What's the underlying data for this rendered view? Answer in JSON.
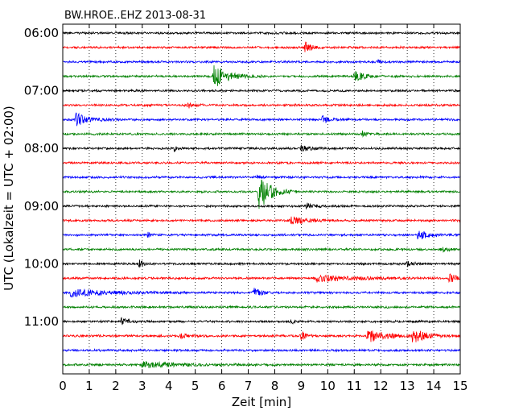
{
  "chart_data": {
    "type": "line",
    "title": "BW.HROE..EHZ 2013-08-31",
    "xlabel": "Zeit  [min]",
    "ylabel": "UTC (Lokalzeit = UTC + 02:00)",
    "xlim": [
      0,
      15
    ],
    "x_ticks": [
      "0",
      "1",
      "2",
      "3",
      "4",
      "5",
      "6",
      "7",
      "8",
      "9",
      "10",
      "11",
      "12",
      "13",
      "14",
      "15"
    ],
    "y_tick_labels": [
      "06:00",
      "07:00",
      "08:00",
      "09:00",
      "10:00",
      "11:00"
    ],
    "grid": {
      "vertical_dotted": true
    },
    "trace_colors": [
      "#000000",
      "#ff0000",
      "#0000ff",
      "#008000"
    ],
    "traces": [
      {
        "start": "06:00",
        "events": []
      },
      {
        "start": "06:15",
        "events": [
          {
            "t_min": 9.15,
            "amp": 0.55,
            "dur_min": 0.6
          }
        ]
      },
      {
        "start": "06:30",
        "events": [
          {
            "t_min": 11.9,
            "amp": 0.22,
            "dur_min": 0.2
          }
        ]
      },
      {
        "start": "06:45",
        "events": [
          {
            "t_min": 5.7,
            "amp": 1.0,
            "dur_min": 1.5
          },
          {
            "t_min": 11.0,
            "amp": 0.55,
            "dur_min": 0.9
          }
        ]
      },
      {
        "start": "07:00",
        "events": []
      },
      {
        "start": "07:15",
        "events": [
          {
            "t_min": 4.7,
            "amp": 0.25,
            "dur_min": 0.6
          }
        ]
      },
      {
        "start": "07:30",
        "events": [
          {
            "t_min": 0.5,
            "amp": 0.5,
            "dur_min": 1.3
          },
          {
            "t_min": 9.8,
            "amp": 0.3,
            "dur_min": 0.7
          }
        ]
      },
      {
        "start": "07:45",
        "events": [
          {
            "t_min": 11.3,
            "amp": 0.2,
            "dur_min": 0.5
          }
        ]
      },
      {
        "start": "08:00",
        "events": [
          {
            "t_min": 4.2,
            "amp": 0.25,
            "dur_min": 0.3
          },
          {
            "t_min": 9.0,
            "amp": 0.22,
            "dur_min": 1.2
          }
        ]
      },
      {
        "start": "08:15",
        "events": []
      },
      {
        "start": "08:30",
        "events": [
          {
            "t_min": 7.35,
            "amp": 0.2,
            "dur_min": 0.3
          }
        ]
      },
      {
        "start": "08:45",
        "events": [
          {
            "t_min": 7.4,
            "amp": 1.6,
            "dur_min": 1.2
          }
        ]
      },
      {
        "start": "09:00",
        "events": [
          {
            "t_min": 9.2,
            "amp": 0.25,
            "dur_min": 0.8
          }
        ]
      },
      {
        "start": "09:15",
        "events": [
          {
            "t_min": 8.6,
            "amp": 0.32,
            "dur_min": 1.7
          }
        ]
      },
      {
        "start": "09:30",
        "events": [
          {
            "t_min": 3.2,
            "amp": 0.25,
            "dur_min": 0.3
          },
          {
            "t_min": 13.4,
            "amp": 0.38,
            "dur_min": 1.4
          }
        ]
      },
      {
        "start": "09:45",
        "events": [
          {
            "t_min": 14.3,
            "amp": 0.25,
            "dur_min": 0.6
          }
        ]
      },
      {
        "start": "10:00",
        "events": [
          {
            "t_min": 2.9,
            "amp": 0.4,
            "dur_min": 0.4
          },
          {
            "t_min": 13.0,
            "amp": 0.2,
            "dur_min": 0.6
          }
        ]
      },
      {
        "start": "10:15",
        "events": [
          {
            "t_min": 9.5,
            "amp": 0.3,
            "dur_min": 3.5
          },
          {
            "t_min": 14.6,
            "amp": 0.45,
            "dur_min": 0.6
          }
        ]
      },
      {
        "start": "10:30",
        "events": [
          {
            "t_min": 0.3,
            "amp": 0.3,
            "dur_min": 4.3
          },
          {
            "t_min": 7.2,
            "amp": 0.4,
            "dur_min": 0.8
          }
        ]
      },
      {
        "start": "10:45",
        "events": []
      },
      {
        "start": "11:00",
        "events": [
          {
            "t_min": 2.2,
            "amp": 0.25,
            "dur_min": 0.8
          },
          {
            "t_min": 8.6,
            "amp": 0.25,
            "dur_min": 0.5
          }
        ]
      },
      {
        "start": "11:15",
        "events": [
          {
            "t_min": 4.4,
            "amp": 0.25,
            "dur_min": 0.8
          },
          {
            "t_min": 9.0,
            "amp": 0.35,
            "dur_min": 0.6
          },
          {
            "t_min": 11.5,
            "amp": 0.55,
            "dur_min": 2.0
          },
          {
            "t_min": 13.2,
            "amp": 0.55,
            "dur_min": 1.5
          }
        ]
      },
      {
        "start": "11:30",
        "events": []
      },
      {
        "start": "11:45",
        "events": [
          {
            "t_min": 3.0,
            "amp": 0.25,
            "dur_min": 4.0
          }
        ]
      }
    ]
  }
}
